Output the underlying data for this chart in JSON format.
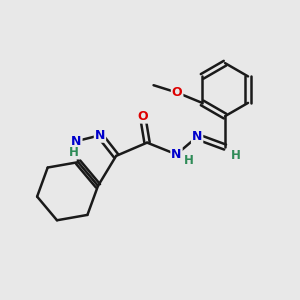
{
  "bg_color": "#e8e8e8",
  "bond_color": "#1a1a1a",
  "bond_width": 1.8,
  "dbl_sep": 0.09,
  "atom_colors": {
    "N": "#0000cc",
    "O": "#dd0000",
    "H": "#2e8b57",
    "C": "#1a1a1a"
  },
  "fs": 9,
  "hfs": 8.5
}
